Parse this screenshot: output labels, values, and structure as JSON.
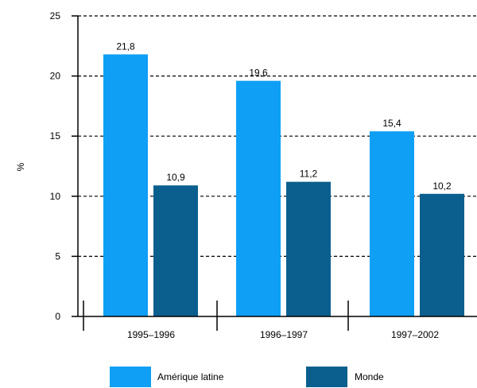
{
  "chart_data": {
    "type": "bar",
    "ylabel": "%",
    "ylim": [
      0,
      25
    ],
    "yticks": [
      0,
      5,
      10,
      15,
      20,
      25
    ],
    "grid": true,
    "legend_position": "bottom",
    "categories": [
      "1995–1996",
      "1996–1997",
      "1997–2002"
    ],
    "series": [
      {
        "name": "Amérique latine",
        "color": "#0f9ff5",
        "values": [
          21.8,
          19.6,
          15.4
        ],
        "labels": [
          "21,8",
          "19,6",
          "15,4"
        ]
      },
      {
        "name": "Monde",
        "color": "#0b5f8e",
        "values": [
          10.9,
          11.2,
          10.2
        ],
        "labels": [
          "10,9",
          "11,2",
          "10,2"
        ]
      }
    ]
  }
}
